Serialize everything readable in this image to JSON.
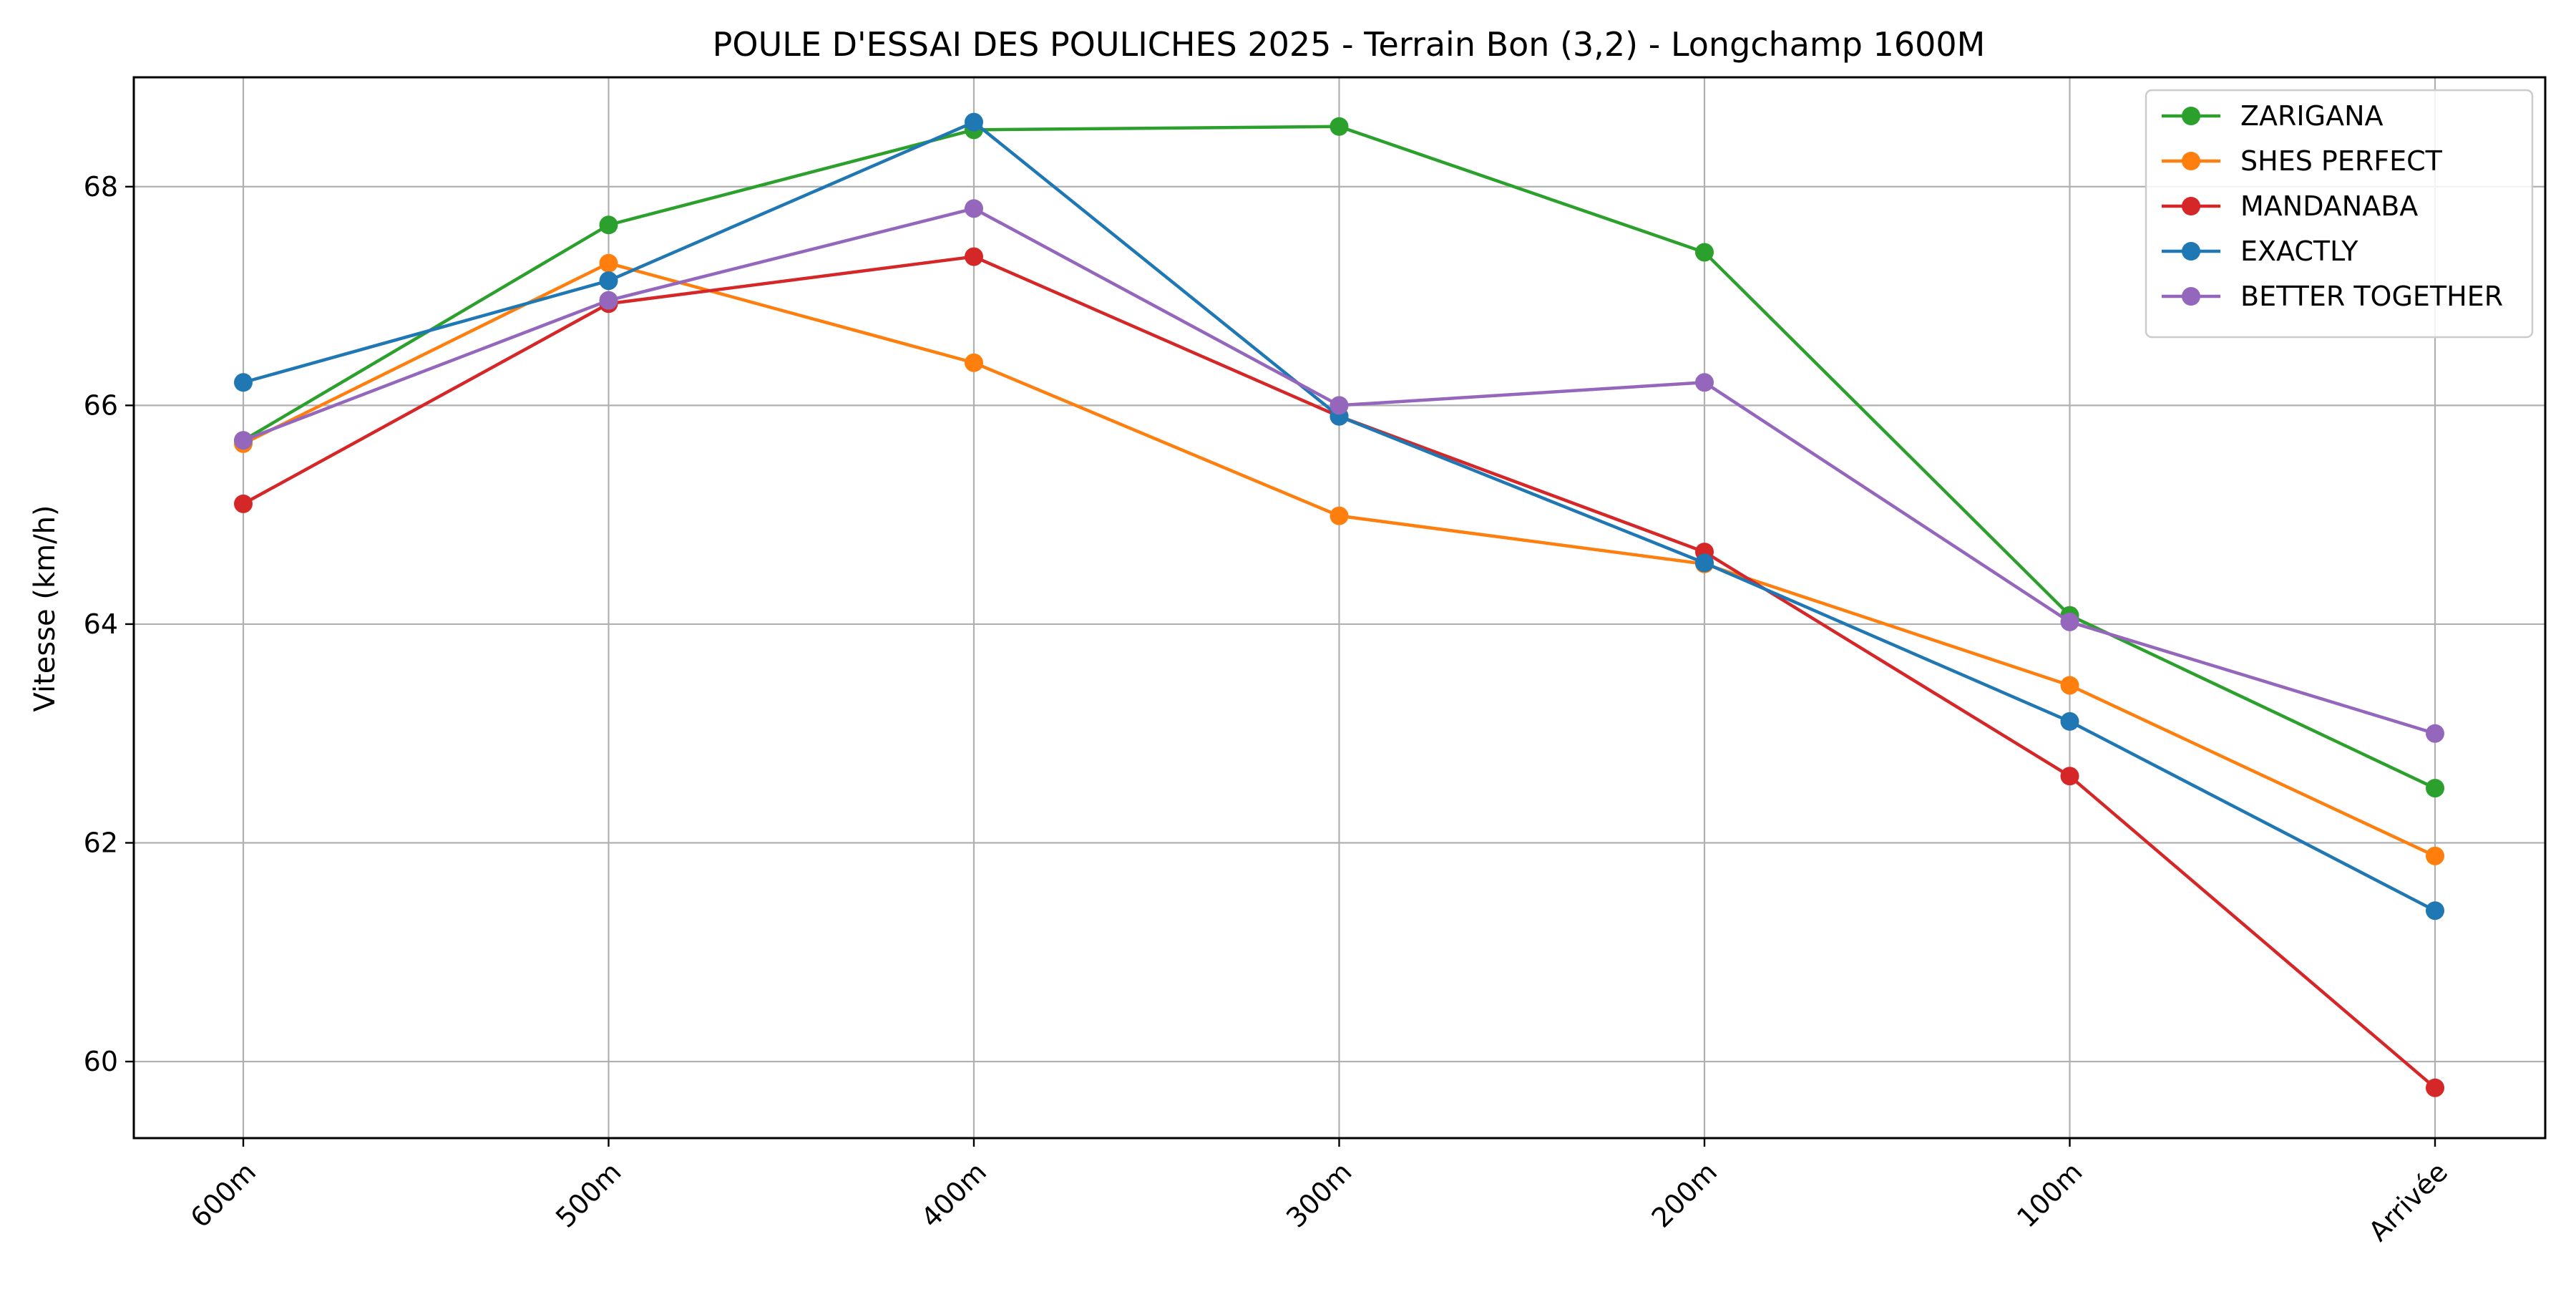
{
  "chart_data": {
    "type": "line",
    "title": "POULE D'ESSAI DES POULICHES 2025 - Terrain Bon (3,2) - Longchamp 1600M",
    "xlabel": "",
    "ylabel": "Vitesse (km/h)",
    "categories": [
      "600m",
      "500m",
      "400m",
      "300m",
      "200m",
      "100m",
      "Arrivée"
    ],
    "ylim": [
      59.3,
      69.0
    ],
    "yticks": [
      60,
      62,
      64,
      66,
      68
    ],
    "grid": true,
    "legend_position": "top-right",
    "marker": "circle",
    "series": [
      {
        "name": "ZARIGANA",
        "color": "#2ca02c",
        "values": [
          65.68,
          67.65,
          68.52,
          68.55,
          67.4,
          64.08,
          62.5
        ]
      },
      {
        "name": "SHES PERFECT",
        "color": "#ff7f0e",
        "values": [
          65.65,
          67.3,
          66.39,
          64.99,
          64.55,
          63.44,
          61.88
        ]
      },
      {
        "name": "MANDANABA",
        "color": "#d62728",
        "values": [
          65.1,
          66.93,
          67.36,
          65.9,
          64.66,
          62.61,
          59.76
        ]
      },
      {
        "name": "EXACTLY",
        "color": "#1f77b4",
        "values": [
          66.21,
          67.14,
          68.59,
          65.9,
          64.56,
          63.11,
          61.38
        ]
      },
      {
        "name": "BETTER TOGETHER",
        "color": "#9467bd",
        "values": [
          65.68,
          66.96,
          67.8,
          66.0,
          66.21,
          64.02,
          63.0
        ]
      }
    ]
  }
}
